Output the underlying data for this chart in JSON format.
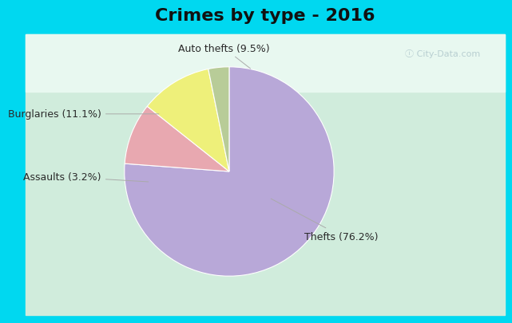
{
  "title": "Crimes by type - 2016",
  "slices": [
    {
      "label": "Thefts",
      "pct": 76.2,
      "color": "#b8a8d8"
    },
    {
      "label": "Auto thefts",
      "pct": 9.5,
      "color": "#e8a8b0"
    },
    {
      "label": "Burglaries",
      "pct": 11.1,
      "color": "#eef07a"
    },
    {
      "label": "Assaults",
      "pct": 3.2,
      "color": "#b8cc98"
    }
  ],
  "title_fontsize": 16,
  "title_fontweight": "bold",
  "bg_color_top": "#00d8f0",
  "bg_color_main_top": "#e8f8f0",
  "bg_color_main_bottom": "#d0ecdc",
  "label_fontsize": 9,
  "watermark": "ⓘ City-Data.com",
  "startangle": 90,
  "label_configs": [
    {
      "label": "Thefts (76.2%)",
      "xt": 0.72,
      "yt": -0.62,
      "xa": 0.38,
      "ya": -0.25,
      "ha": "left"
    },
    {
      "label": "Auto thefts (9.5%)",
      "xt": -0.05,
      "yt": 1.18,
      "xa": 0.22,
      "ya": 0.97,
      "ha": "center"
    },
    {
      "label": "Burglaries (11.1%)",
      "xt": -1.22,
      "yt": 0.55,
      "xa": -0.65,
      "ya": 0.55,
      "ha": "right"
    },
    {
      "label": "Assaults (3.2%)",
      "xt": -1.22,
      "yt": -0.05,
      "xa": -0.75,
      "ya": -0.1,
      "ha": "right"
    }
  ]
}
